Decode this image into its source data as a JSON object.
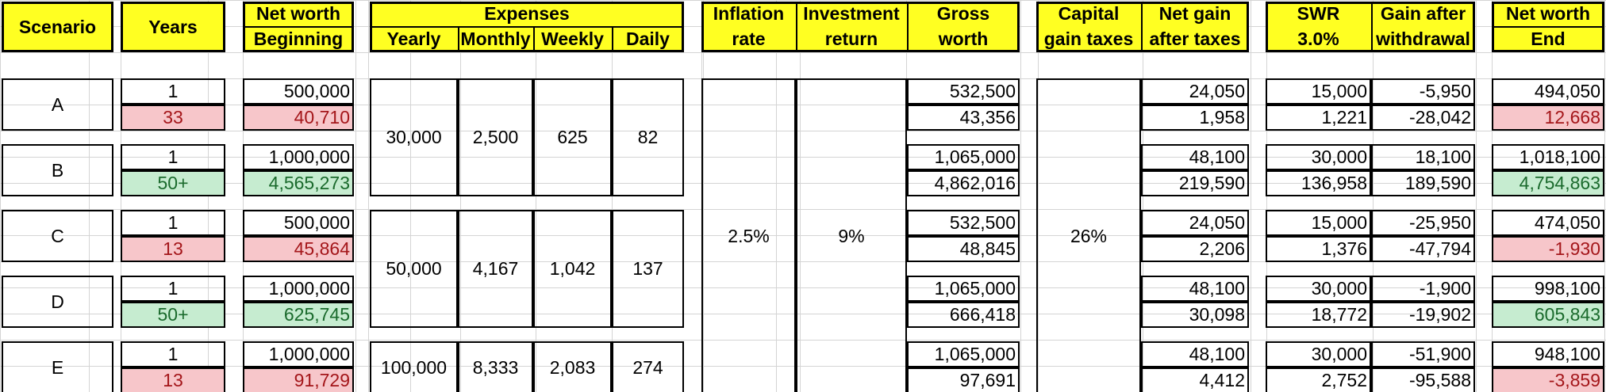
{
  "headers": {
    "scenario": "Scenario",
    "years": "Years",
    "net_worth_beginning": [
      "Net worth",
      "Beginning"
    ],
    "expenses": "Expenses",
    "yearly": "Yearly",
    "monthly": "Monthly",
    "weekly": "Weekly",
    "daily": "Daily",
    "inflation": [
      "Inflation",
      "rate"
    ],
    "investment": [
      "Investment",
      "return"
    ],
    "gross": [
      "Gross",
      "worth"
    ],
    "capital": [
      "Capital",
      "gain taxes"
    ],
    "netgain": [
      "Net gain",
      "after taxes"
    ],
    "swr": [
      "SWR",
      "3.0%"
    ],
    "gain_after": [
      "Gain after",
      "withdrawal"
    ],
    "net_worth_end": [
      "Net worth",
      "End"
    ]
  },
  "shared": {
    "inflation_rate": "2.5%",
    "investment_return": "9%",
    "capital_gain_taxes": "26%"
  },
  "expense_groups": [
    {
      "yearly": "30,000",
      "monthly": "2,500",
      "weekly": "625",
      "daily": "82"
    },
    {
      "yearly": "50,000",
      "monthly": "4,167",
      "weekly": "1,042",
      "daily": "137"
    },
    {
      "yearly": "100,000",
      "monthly": "8,333",
      "weekly": "2,083",
      "daily": "274"
    }
  ],
  "scenarios": [
    {
      "name": "A",
      "rows": [
        {
          "years": "1",
          "begin": "500,000",
          "gross": "532,500",
          "netgain": "24,050",
          "swr": "15,000",
          "gain_after": "-5,950",
          "end": "494,050",
          "status": "normal"
        },
        {
          "years": "33",
          "begin": "40,710",
          "gross": "43,356",
          "netgain": "1,958",
          "swr": "1,221",
          "gain_after": "-28,042",
          "end": "12,668",
          "status": "red"
        }
      ]
    },
    {
      "name": "B",
      "rows": [
        {
          "years": "1",
          "begin": "1,000,000",
          "gross": "1,065,000",
          "netgain": "48,100",
          "swr": "30,000",
          "gain_after": "18,100",
          "end": "1,018,100",
          "status": "normal"
        },
        {
          "years": "50+",
          "begin": "4,565,273",
          "gross": "4,862,016",
          "netgain": "219,590",
          "swr": "136,958",
          "gain_after": "189,590",
          "end": "4,754,863",
          "status": "green"
        }
      ]
    },
    {
      "name": "C",
      "rows": [
        {
          "years": "1",
          "begin": "500,000",
          "gross": "532,500",
          "netgain": "24,050",
          "swr": "15,000",
          "gain_after": "-25,950",
          "end": "474,050",
          "status": "normal"
        },
        {
          "years": "13",
          "begin": "45,864",
          "gross": "48,845",
          "netgain": "2,206",
          "swr": "1,376",
          "gain_after": "-47,794",
          "end": "-1,930",
          "status": "red"
        }
      ]
    },
    {
      "name": "D",
      "rows": [
        {
          "years": "1",
          "begin": "1,000,000",
          "gross": "1,065,000",
          "netgain": "48,100",
          "swr": "30,000",
          "gain_after": "-1,900",
          "end": "998,100",
          "status": "normal"
        },
        {
          "years": "50+",
          "begin": "625,745",
          "gross": "666,418",
          "netgain": "30,098",
          "swr": "18,772",
          "gain_after": "-19,902",
          "end": "605,843",
          "status": "green"
        }
      ]
    },
    {
      "name": "E",
      "rows": [
        {
          "years": "1",
          "begin": "1,000,000",
          "gross": "1,065,000",
          "netgain": "48,100",
          "swr": "30,000",
          "gain_after": "-51,900",
          "end": "948,100",
          "status": "normal"
        },
        {
          "years": "13",
          "begin": "91,729",
          "gross": "97,691",
          "netgain": "4,412",
          "swr": "2,752",
          "gain_after": "-95,588",
          "end": "-3,859",
          "status": "red"
        }
      ]
    }
  ]
}
